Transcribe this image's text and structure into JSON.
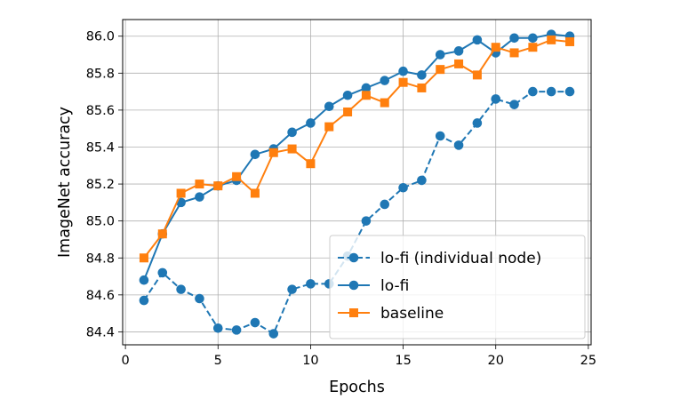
{
  "chart_data": {
    "type": "line",
    "title": "",
    "xlabel": "Epochs",
    "ylabel": "ImageNet accuracy",
    "xlim": [
      -0.15,
      25.15
    ],
    "ylim": [
      84.33,
      86.09
    ],
    "xticks": [
      0,
      5,
      10,
      15,
      20,
      25
    ],
    "yticks": [
      84.4,
      84.6,
      84.8,
      85.0,
      85.2,
      85.4,
      85.6,
      85.8,
      86.0
    ],
    "xtick_labels": [
      "0",
      "5",
      "10",
      "15",
      "20",
      "25"
    ],
    "ytick_labels": [
      "84.4",
      "84.6",
      "84.8",
      "85.0",
      "85.2",
      "85.4",
      "85.6",
      "85.8",
      "86.0"
    ],
    "grid": true,
    "legend_position": "lower right",
    "x": [
      1,
      2,
      3,
      4,
      5,
      6,
      7,
      8,
      9,
      10,
      11,
      12,
      13,
      14,
      15,
      16,
      17,
      18,
      19,
      20,
      21,
      22,
      23,
      24
    ],
    "series": [
      {
        "name": "lo-fi (individual node)",
        "color": "#1f77b4",
        "line_style": "dashed",
        "marker": "circle",
        "values": [
          84.57,
          84.72,
          84.63,
          84.58,
          84.42,
          84.41,
          84.45,
          84.39,
          84.63,
          84.66,
          84.66,
          84.81,
          85.0,
          85.09,
          85.18,
          85.22,
          85.46,
          85.41,
          85.53,
          85.66,
          85.63,
          85.7,
          85.7,
          85.7
        ]
      },
      {
        "name": "lo-fi",
        "color": "#1f77b4",
        "line_style": "solid",
        "marker": "circle",
        "values": [
          84.68,
          84.93,
          85.1,
          85.13,
          85.19,
          85.22,
          85.36,
          85.39,
          85.48,
          85.53,
          85.62,
          85.68,
          85.72,
          85.76,
          85.81,
          85.79,
          85.9,
          85.92,
          85.98,
          85.91,
          85.99,
          85.99,
          86.01,
          86.0
        ]
      },
      {
        "name": "baseline",
        "color": "#ff7f0e",
        "line_style": "solid",
        "marker": "square",
        "values": [
          84.8,
          84.93,
          85.15,
          85.2,
          85.19,
          85.24,
          85.15,
          85.37,
          85.39,
          85.31,
          85.51,
          85.59,
          85.68,
          85.64,
          85.75,
          85.72,
          85.82,
          85.85,
          85.79,
          85.94,
          85.91,
          85.94,
          85.98,
          85.97
        ]
      }
    ]
  }
}
